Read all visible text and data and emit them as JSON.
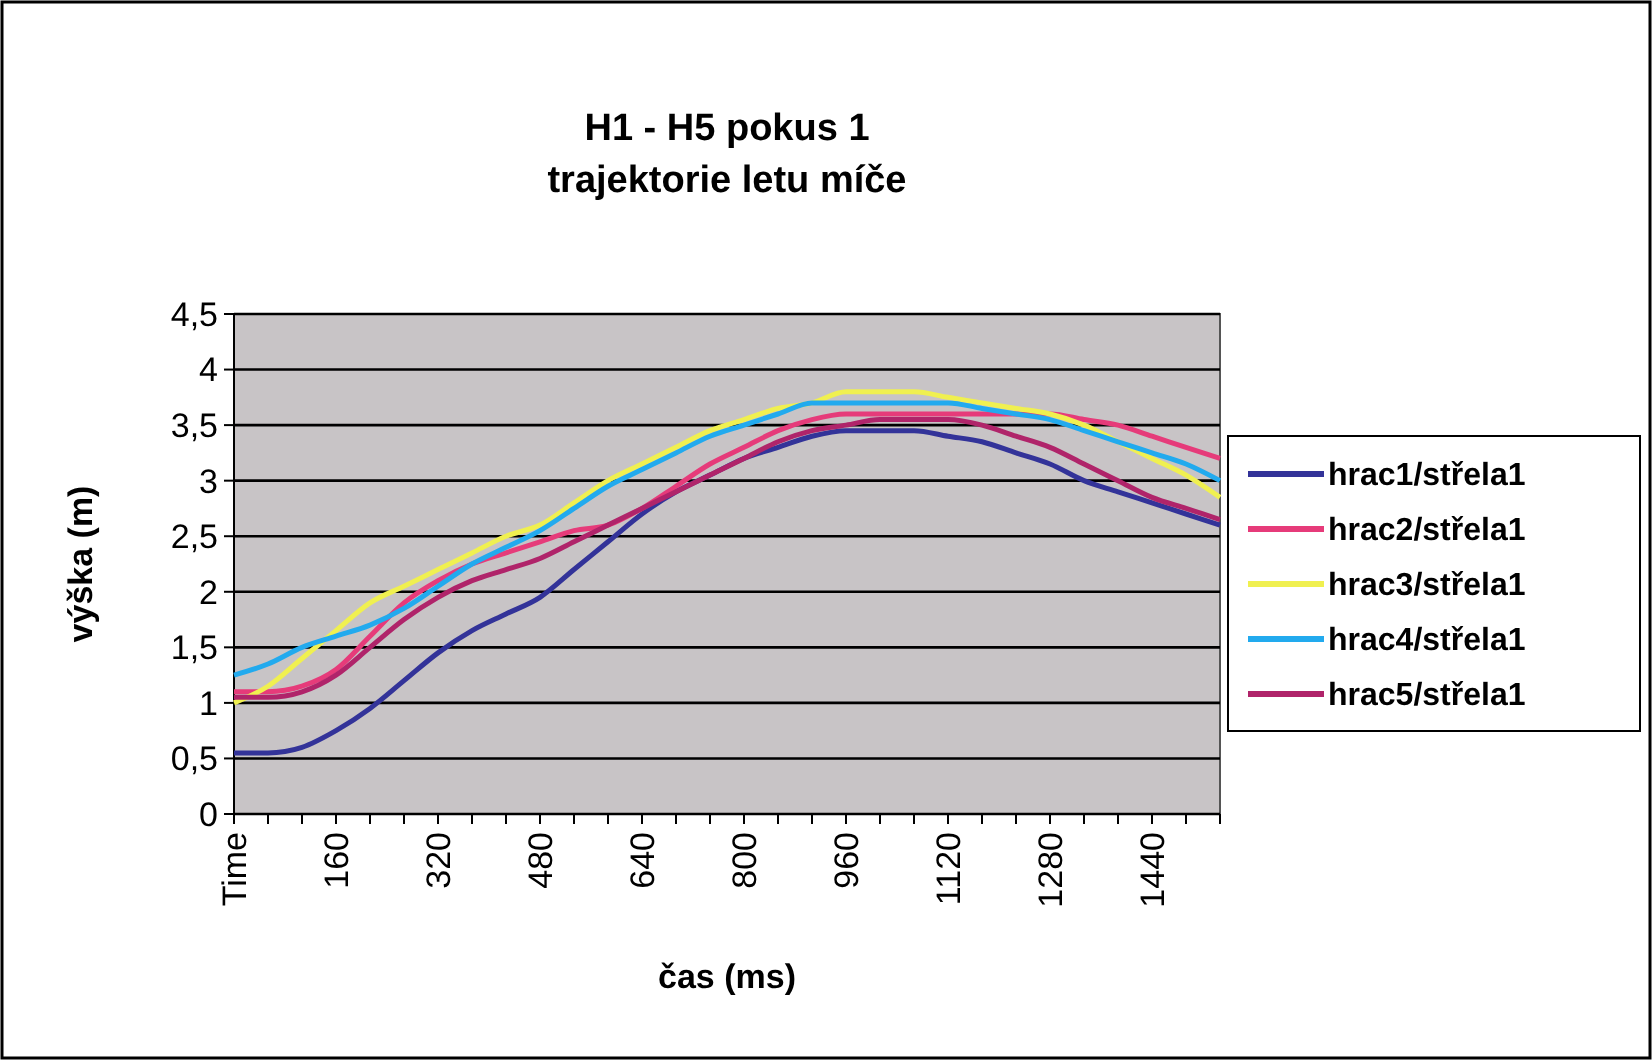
{
  "chart_data": {
    "type": "line",
    "title": "H1 - H5 pokus 1",
    "subtitle": "trajektorie letu míče",
    "xlabel": "čas (ms)",
    "ylabel": "výška (m)",
    "categories": [
      "Time",
      null,
      null,
      "160",
      null,
      null,
      "320",
      null,
      null,
      "480",
      null,
      null,
      "640",
      null,
      null,
      "800",
      null,
      null,
      "960",
      null,
      null,
      "1120",
      null,
      null,
      "1280",
      null,
      null,
      "1440",
      null,
      null
    ],
    "series": [
      {
        "name": "hrac1/střela1",
        "color": "#333399",
        "values": [
          0.55,
          0.55,
          0.6,
          0.75,
          0.95,
          1.2,
          1.45,
          1.65,
          1.8,
          1.95,
          2.2,
          2.45,
          2.7,
          2.9,
          3.05,
          3.2,
          3.3,
          3.4,
          3.45,
          3.45,
          3.45,
          3.4,
          3.35,
          3.25,
          3.15,
          3.0,
          2.9,
          2.8,
          2.7,
          2.6
        ]
      },
      {
        "name": "hrac2/střela1",
        "color": "#e63b7a",
        "values": [
          1.1,
          1.1,
          1.15,
          1.3,
          1.6,
          1.9,
          2.1,
          2.25,
          2.35,
          2.45,
          2.55,
          2.6,
          2.75,
          2.95,
          3.15,
          3.3,
          3.45,
          3.55,
          3.6,
          3.6,
          3.6,
          3.6,
          3.6,
          3.6,
          3.6,
          3.55,
          3.5,
          3.4,
          3.3,
          3.2
        ]
      },
      {
        "name": "hrac3/střela1",
        "color": "#f0f050",
        "values": [
          1.0,
          1.15,
          1.4,
          1.65,
          1.9,
          2.05,
          2.2,
          2.35,
          2.5,
          2.6,
          2.8,
          3.0,
          3.15,
          3.3,
          3.45,
          3.55,
          3.65,
          3.7,
          3.8,
          3.8,
          3.8,
          3.75,
          3.7,
          3.65,
          3.6,
          3.5,
          3.35,
          3.2,
          3.05,
          2.85
        ]
      },
      {
        "name": "hrac4/střela1",
        "color": "#22aaee",
        "values": [
          1.25,
          1.35,
          1.5,
          1.6,
          1.7,
          1.85,
          2.05,
          2.25,
          2.4,
          2.55,
          2.75,
          2.95,
          3.1,
          3.25,
          3.4,
          3.5,
          3.6,
          3.7,
          3.7,
          3.7,
          3.7,
          3.7,
          3.65,
          3.6,
          3.55,
          3.45,
          3.35,
          3.25,
          3.15,
          3.0
        ]
      },
      {
        "name": "hrac5/střela1",
        "color": "#b0246a",
        "values": [
          1.05,
          1.05,
          1.1,
          1.25,
          1.5,
          1.75,
          1.95,
          2.1,
          2.2,
          2.3,
          2.45,
          2.6,
          2.75,
          2.9,
          3.05,
          3.2,
          3.35,
          3.45,
          3.5,
          3.55,
          3.55,
          3.55,
          3.5,
          3.4,
          3.3,
          3.15,
          3.0,
          2.85,
          2.75,
          2.65
        ]
      }
    ],
    "ylim": [
      0,
      4.5
    ],
    "yticks": [
      0,
      {
        "value": 0.5,
        "label": "0,5"
      },
      1,
      {
        "value": 1.5,
        "label": "1,5"
      },
      2,
      {
        "value": 2.5,
        "label": "2,5"
      },
      3,
      {
        "value": 3.5,
        "label": "3,5"
      },
      4,
      {
        "value": 4.5,
        "label": "4,5"
      }
    ],
    "grid": "y",
    "legend": "right",
    "marker": "none",
    "line_style": "solid"
  }
}
